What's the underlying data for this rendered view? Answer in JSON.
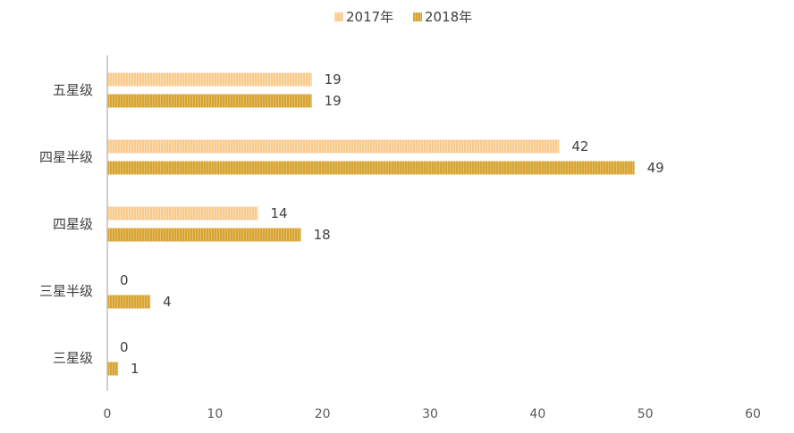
{
  "chart_data": {
    "type": "bar",
    "orientation": "horizontal",
    "categories": [
      "五星级",
      "四星半级",
      "四星级",
      "三星半级",
      "三星级"
    ],
    "series": [
      {
        "name": "2017年",
        "values": [
          19,
          42,
          14,
          0,
          0
        ],
        "color": "#F8CB8E"
      },
      {
        "name": "2018年",
        "values": [
          19,
          49,
          18,
          4,
          1
        ],
        "color": "#D8A534"
      }
    ],
    "xlim": [
      0,
      60
    ],
    "xticks": [
      0,
      10,
      20,
      30,
      40,
      50,
      60
    ],
    "legend_position": "top-center",
    "grid": false,
    "bar_pattern": "vertical-stripes"
  }
}
